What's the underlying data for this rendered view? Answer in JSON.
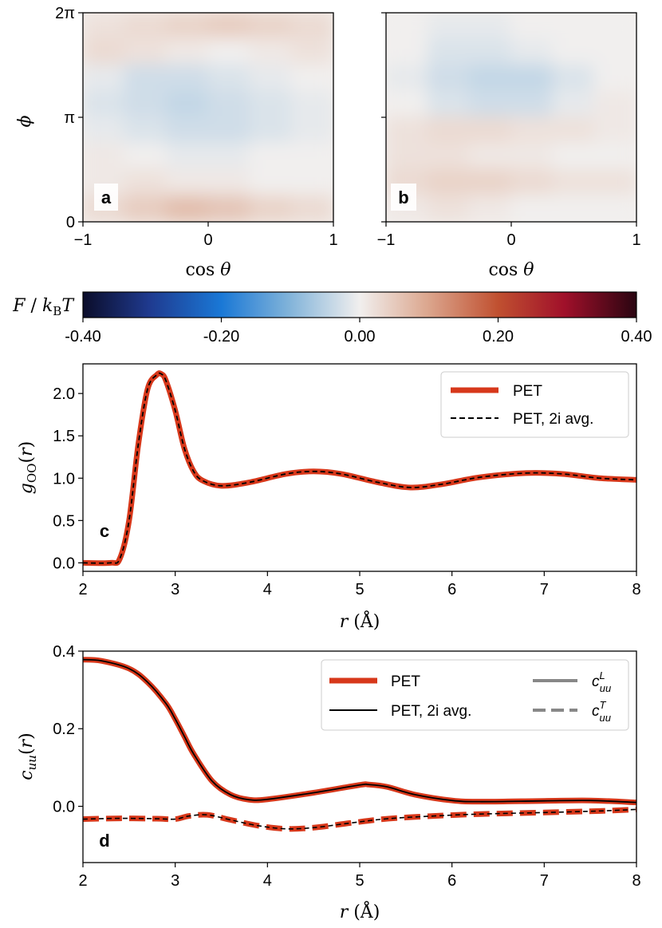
{
  "chart_data": [
    {
      "id": "a",
      "type": "heatmap",
      "panel_label": "a",
      "xlabel": "cos θ",
      "ylabel": "ϕ",
      "xlim": [
        -1,
        1
      ],
      "ylim": [
        0,
        6.2832
      ],
      "xticks": [
        "−1",
        "0",
        "1"
      ],
      "yticks": [
        "0",
        "π",
        "2π"
      ],
      "description_cells": [
        [
          0.02,
          0.03,
          0.04,
          0.05,
          0.04,
          0.03
        ],
        [
          0.03,
          0.02,
          0.01,
          0.0,
          0.01,
          0.02
        ],
        [
          -0.01,
          -0.03,
          -0.03,
          -0.02,
          -0.01,
          0.0
        ],
        [
          -0.02,
          -0.03,
          -0.04,
          -0.03,
          -0.02,
          -0.01
        ],
        [
          -0.01,
          -0.02,
          -0.03,
          -0.03,
          -0.02,
          -0.01
        ],
        [
          0.01,
          0.0,
          -0.01,
          -0.01,
          0.0,
          0.0
        ],
        [
          0.01,
          0.02,
          0.01,
          0.01,
          0.0,
          0.0
        ],
        [
          0.03,
          0.05,
          0.07,
          0.06,
          0.04,
          0.03
        ]
      ]
    },
    {
      "id": "b",
      "type": "heatmap",
      "panel_label": "b",
      "xlabel": "cos θ",
      "ylabel": "",
      "xlim": [
        -1,
        1
      ],
      "ylim": [
        0,
        6.2832
      ],
      "xticks": [
        "−1",
        "0",
        "1"
      ],
      "yticks": [
        "",
        "",
        ""
      ],
      "description_cells": [
        [
          0.0,
          -0.01,
          -0.01,
          0.0,
          0.0,
          0.0
        ],
        [
          0.0,
          -0.02,
          -0.02,
          -0.01,
          0.0,
          0.0
        ],
        [
          -0.01,
          -0.03,
          -0.04,
          -0.04,
          -0.02,
          0.0
        ],
        [
          0.0,
          -0.02,
          -0.03,
          -0.03,
          -0.01,
          0.01
        ],
        [
          0.02,
          0.03,
          0.03,
          0.02,
          0.02,
          0.01
        ],
        [
          0.02,
          0.02,
          0.01,
          0.01,
          0.0,
          0.0
        ],
        [
          0.03,
          0.04,
          0.04,
          0.03,
          0.02,
          0.02
        ],
        [
          0.01,
          0.02,
          0.01,
          0.0,
          0.0,
          0.0
        ]
      ]
    },
    {
      "id": "colorbar",
      "type": "colorbar",
      "label": "F / kBT",
      "label_parts": [
        "F",
        " / ",
        "k",
        "B",
        "T"
      ],
      "range": [
        -0.4,
        0.4
      ],
      "ticks": [
        "-0.40",
        "-0.20",
        "0.00",
        "0.20",
        "0.40"
      ],
      "colors": [
        "#0b0d2a",
        "#1f4fb0",
        "#1a78d6",
        "#7fb2d9",
        "#f1efee",
        "#dca890",
        "#c05030",
        "#a0102a",
        "#2a0511"
      ]
    },
    {
      "id": "c",
      "type": "line",
      "panel_label": "c",
      "xlabel": "r (Å)",
      "ylabel": "gOO(r)",
      "xlim": [
        2,
        8
      ],
      "ylim": [
        -0.1,
        2.35
      ],
      "xticks": [
        "2",
        "3",
        "4",
        "5",
        "6",
        "7",
        "8"
      ],
      "yticks": [
        "0.0",
        "0.5",
        "1.0",
        "1.5",
        "2.0"
      ],
      "legend": [
        "PET",
        "PET, 2i avg."
      ],
      "x": [
        2.0,
        2.3,
        2.4,
        2.5,
        2.6,
        2.7,
        2.8,
        2.85,
        2.9,
        3.0,
        3.1,
        3.2,
        3.3,
        3.5,
        3.8,
        4.2,
        4.5,
        4.8,
        5.2,
        5.55,
        5.9,
        6.3,
        6.8,
        7.2,
        7.6,
        8.0
      ],
      "series": [
        {
          "name": "PET",
          "values": [
            0.0,
            0.0,
            0.05,
            0.5,
            1.4,
            2.05,
            2.22,
            2.23,
            2.15,
            1.8,
            1.35,
            1.08,
            0.97,
            0.91,
            0.95,
            1.05,
            1.08,
            1.05,
            0.95,
            0.89,
            0.93,
            1.01,
            1.06,
            1.05,
            1.0,
            0.98
          ]
        },
        {
          "name": "PET, 2i avg.",
          "values": [
            0.0,
            0.0,
            0.05,
            0.5,
            1.4,
            2.05,
            2.22,
            2.23,
            2.15,
            1.8,
            1.35,
            1.08,
            0.97,
            0.91,
            0.95,
            1.05,
            1.08,
            1.05,
            0.95,
            0.89,
            0.93,
            1.01,
            1.06,
            1.05,
            1.0,
            0.98
          ]
        }
      ]
    },
    {
      "id": "d",
      "type": "line",
      "panel_label": "d",
      "xlabel": "r (Å)",
      "ylabel": "cuu(r)",
      "xlim": [
        2,
        8
      ],
      "ylim": [
        -0.145,
        0.4
      ],
      "xticks": [
        "2",
        "3",
        "4",
        "5",
        "6",
        "7",
        "8"
      ],
      "yticks": [
        "0.0",
        "0.2",
        "0.4"
      ],
      "legend": [
        "PET",
        "PET, 2i avg.",
        "cLuu",
        "cTuu"
      ],
      "x_L": [
        2.0,
        2.2,
        2.5,
        2.7,
        2.9,
        3.0,
        3.1,
        3.2,
        3.4,
        3.6,
        3.8,
        4.0,
        4.5,
        5.0,
        5.1,
        5.3,
        5.6,
        6.0,
        6.3,
        7.0,
        7.5,
        8.0
      ],
      "series": [
        {
          "name": "cLuu",
          "values": [
            0.378,
            0.375,
            0.355,
            0.32,
            0.265,
            0.225,
            0.18,
            0.135,
            0.065,
            0.03,
            0.017,
            0.018,
            0.035,
            0.055,
            0.056,
            0.05,
            0.03,
            0.015,
            0.012,
            0.014,
            0.015,
            0.01
          ]
        },
        {
          "name": "cTuu",
          "x": [
            2.0,
            2.4,
            2.8,
            3.0,
            3.15,
            3.35,
            3.6,
            3.9,
            4.2,
            4.5,
            4.9,
            5.3,
            5.8,
            6.3,
            7.0,
            7.6,
            8.0
          ],
          "values": [
            -0.033,
            -0.031,
            -0.032,
            -0.033,
            -0.025,
            -0.022,
            -0.035,
            -0.05,
            -0.058,
            -0.055,
            -0.043,
            -0.032,
            -0.025,
            -0.02,
            -0.016,
            -0.012,
            -0.008
          ]
        }
      ]
    }
  ]
}
